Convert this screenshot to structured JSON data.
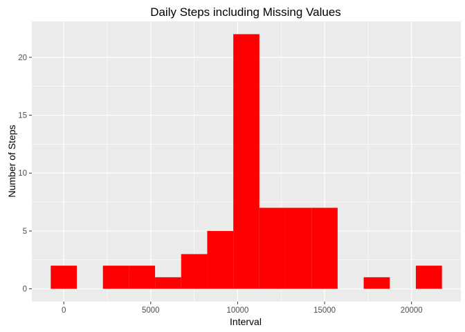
{
  "chart_data": {
    "type": "bar",
    "title": "Daily Steps including Missing Values",
    "xlabel": "Interval",
    "ylabel": "Number of Steps",
    "bin_width": 1500,
    "bins": [
      {
        "x0": -750,
        "x1": 750,
        "count": 2
      },
      {
        "x0": 2250,
        "x1": 3750,
        "count": 2
      },
      {
        "x0": 3750,
        "x1": 5250,
        "count": 2
      },
      {
        "x0": 5250,
        "x1": 6750,
        "count": 1
      },
      {
        "x0": 6750,
        "x1": 8250,
        "count": 3
      },
      {
        "x0": 8250,
        "x1": 9750,
        "count": 5
      },
      {
        "x0": 9750,
        "x1": 11250,
        "count": 22
      },
      {
        "x0": 11250,
        "x1": 12750,
        "count": 7
      },
      {
        "x0": 12750,
        "x1": 14250,
        "count": 7
      },
      {
        "x0": 14250,
        "x1": 15750,
        "count": 7
      },
      {
        "x0": 17250,
        "x1": 18750,
        "count": 1
      },
      {
        "x0": 20250,
        "x1": 21750,
        "count": 2
      }
    ],
    "xlim": [
      -1838,
      22838
    ],
    "ylim": [
      -1.1,
      23.1
    ],
    "x_ticks": [
      0,
      5000,
      10000,
      15000,
      20000
    ],
    "x_tick_labels": [
      "0",
      "5000",
      "10000",
      "15000",
      "20000"
    ],
    "y_ticks": [
      0,
      5,
      10,
      15,
      20
    ],
    "y_tick_labels": [
      "0",
      "5",
      "10",
      "15",
      "20"
    ],
    "grid": true,
    "bar_color": "#ff0000",
    "panel_background": "#ebebeb",
    "grid_color": "#ffffff"
  }
}
